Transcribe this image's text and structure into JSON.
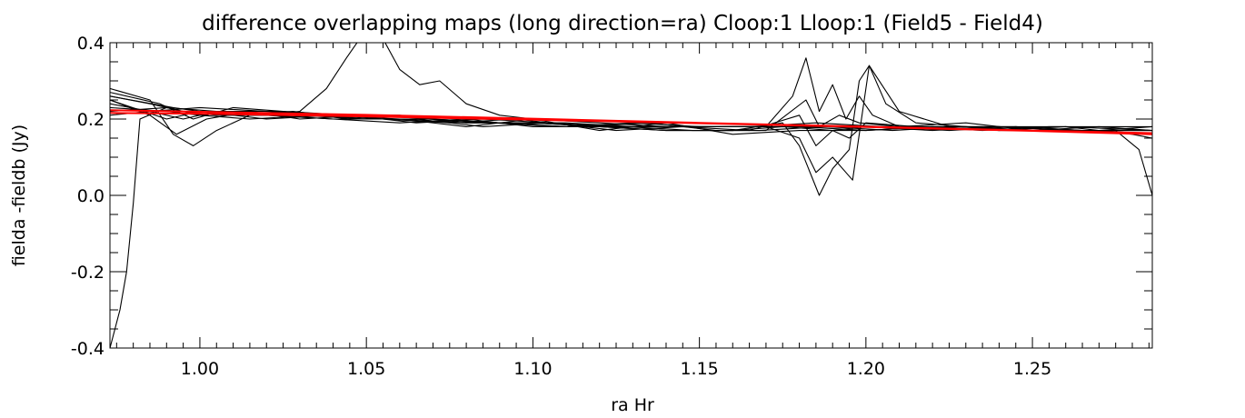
{
  "chart_data": {
    "type": "line",
    "title": "difference overlapping maps (long direction=ra)  Cloop:1 Lloop:1 (Field5 - Field4)",
    "xlabel": "ra Hr",
    "ylabel": "fielda -fieldb (Jy)",
    "xlim": [
      0.973,
      1.286
    ],
    "ylim": [
      -0.4,
      0.4
    ],
    "xticks": [
      1.0,
      1.05,
      1.1,
      1.15,
      1.2,
      1.25
    ],
    "xtick_labels": [
      "1.00",
      "1.05",
      "1.10",
      "1.15",
      "1.20",
      "1.25"
    ],
    "yticks": [
      -0.4,
      -0.2,
      0.0,
      0.2,
      0.4
    ],
    "ytick_labels": [
      "-0.4",
      "-0.2",
      "0.0",
      "0.2",
      "0.4"
    ],
    "grid": false,
    "series": [
      {
        "color": "#000000",
        "points": [
          [
            0.973,
            -0.4
          ],
          [
            0.976,
            -0.3
          ],
          [
            0.978,
            -0.2
          ],
          [
            0.98,
            -0.02
          ],
          [
            0.982,
            0.2
          ],
          [
            0.99,
            0.23
          ],
          [
            1.0,
            0.21
          ],
          [
            1.01,
            0.22
          ],
          [
            1.02,
            0.21
          ],
          [
            1.04,
            0.2
          ],
          [
            1.06,
            0.2
          ],
          [
            1.08,
            0.19
          ],
          [
            1.1,
            0.19
          ],
          [
            1.12,
            0.18
          ],
          [
            1.14,
            0.17
          ],
          [
            1.16,
            0.17
          ],
          [
            1.175,
            0.18
          ],
          [
            1.19,
            0.17
          ],
          [
            1.2,
            0.18
          ],
          [
            1.22,
            0.17
          ],
          [
            1.24,
            0.18
          ],
          [
            1.26,
            0.17
          ],
          [
            1.275,
            0.17
          ],
          [
            1.282,
            0.12
          ],
          [
            1.286,
            0.0
          ]
        ]
      },
      {
        "color": "#000000",
        "points": [
          [
            0.973,
            0.24
          ],
          [
            0.985,
            0.22
          ],
          [
            0.995,
            0.2
          ],
          [
            1.005,
            0.22
          ],
          [
            1.02,
            0.21
          ],
          [
            1.03,
            0.22
          ],
          [
            1.038,
            0.28
          ],
          [
            1.044,
            0.36
          ],
          [
            1.048,
            0.41
          ],
          [
            1.055,
            0.41
          ],
          [
            1.06,
            0.33
          ],
          [
            1.066,
            0.29
          ],
          [
            1.072,
            0.3
          ],
          [
            1.08,
            0.24
          ],
          [
            1.09,
            0.21
          ],
          [
            1.1,
            0.2
          ],
          [
            1.12,
            0.19
          ],
          [
            1.14,
            0.18
          ],
          [
            1.16,
            0.18
          ],
          [
            1.18,
            0.18
          ],
          [
            1.2,
            0.18
          ],
          [
            1.22,
            0.18
          ],
          [
            1.24,
            0.18
          ],
          [
            1.26,
            0.18
          ],
          [
            1.286,
            0.17
          ]
        ]
      },
      {
        "color": "#000000",
        "points": [
          [
            0.973,
            0.28
          ],
          [
            0.985,
            0.25
          ],
          [
            0.992,
            0.16
          ],
          [
            0.998,
            0.13
          ],
          [
            1.005,
            0.17
          ],
          [
            1.015,
            0.21
          ],
          [
            1.03,
            0.21
          ],
          [
            1.05,
            0.2
          ],
          [
            1.07,
            0.2
          ],
          [
            1.09,
            0.19
          ],
          [
            1.11,
            0.19
          ],
          [
            1.13,
            0.18
          ],
          [
            1.15,
            0.18
          ],
          [
            1.17,
            0.18
          ],
          [
            1.178,
            0.26
          ],
          [
            1.182,
            0.36
          ],
          [
            1.186,
            0.22
          ],
          [
            1.19,
            0.29
          ],
          [
            1.194,
            0.2
          ],
          [
            1.198,
            0.26
          ],
          [
            1.202,
            0.21
          ],
          [
            1.21,
            0.18
          ],
          [
            1.23,
            0.18
          ],
          [
            1.25,
            0.17
          ],
          [
            1.27,
            0.17
          ],
          [
            1.286,
            0.16
          ]
        ]
      },
      {
        "color": "#000000",
        "points": [
          [
            0.973,
            0.26
          ],
          [
            0.985,
            0.24
          ],
          [
            0.995,
            0.22
          ],
          [
            1.005,
            0.21
          ],
          [
            1.02,
            0.21
          ],
          [
            1.04,
            0.2
          ],
          [
            1.06,
            0.19
          ],
          [
            1.08,
            0.2
          ],
          [
            1.1,
            0.18
          ],
          [
            1.12,
            0.18
          ],
          [
            1.14,
            0.17
          ],
          [
            1.16,
            0.17
          ],
          [
            1.175,
            0.19
          ],
          [
            1.18,
            0.13
          ],
          [
            1.186,
            0.0
          ],
          [
            1.19,
            0.07
          ],
          [
            1.195,
            0.12
          ],
          [
            1.198,
            0.3
          ],
          [
            1.201,
            0.34
          ],
          [
            1.206,
            0.24
          ],
          [
            1.215,
            0.19
          ],
          [
            1.23,
            0.18
          ],
          [
            1.25,
            0.17
          ],
          [
            1.27,
            0.18
          ],
          [
            1.286,
            0.17
          ]
        ]
      },
      {
        "color": "#000000",
        "points": [
          [
            0.973,
            0.25
          ],
          [
            0.985,
            0.21
          ],
          [
            0.993,
            0.16
          ],
          [
            1.002,
            0.2
          ],
          [
            1.015,
            0.22
          ],
          [
            1.03,
            0.2
          ],
          [
            1.05,
            0.21
          ],
          [
            1.07,
            0.2
          ],
          [
            1.09,
            0.19
          ],
          [
            1.11,
            0.18
          ],
          [
            1.13,
            0.19
          ],
          [
            1.15,
            0.18
          ],
          [
            1.17,
            0.18
          ],
          [
            1.18,
            0.15
          ],
          [
            1.185,
            0.06
          ],
          [
            1.19,
            0.1
          ],
          [
            1.196,
            0.04
          ],
          [
            1.201,
            0.34
          ],
          [
            1.21,
            0.22
          ],
          [
            1.225,
            0.18
          ],
          [
            1.245,
            0.18
          ],
          [
            1.265,
            0.17
          ],
          [
            1.286,
            0.17
          ]
        ]
      },
      {
        "color": "#000000",
        "points": [
          [
            0.973,
            0.27
          ],
          [
            0.988,
            0.24
          ],
          [
            0.998,
            0.2
          ],
          [
            1.01,
            0.23
          ],
          [
            1.025,
            0.22
          ],
          [
            1.045,
            0.2
          ],
          [
            1.065,
            0.2
          ],
          [
            1.085,
            0.18
          ],
          [
            1.105,
            0.19
          ],
          [
            1.125,
            0.17
          ],
          [
            1.145,
            0.18
          ],
          [
            1.165,
            0.17
          ],
          [
            1.18,
            0.21
          ],
          [
            1.185,
            0.13
          ],
          [
            1.19,
            0.17
          ],
          [
            1.195,
            0.15
          ],
          [
            1.2,
            0.19
          ],
          [
            1.215,
            0.18
          ],
          [
            1.235,
            0.17
          ],
          [
            1.255,
            0.18
          ],
          [
            1.275,
            0.18
          ],
          [
            1.286,
            0.18
          ]
        ]
      },
      {
        "color": "#000000",
        "points": [
          [
            0.973,
            0.23
          ],
          [
            0.99,
            0.22
          ],
          [
            1.0,
            0.21
          ],
          [
            1.015,
            0.2
          ],
          [
            1.035,
            0.21
          ],
          [
            1.055,
            0.2
          ],
          [
            1.075,
            0.19
          ],
          [
            1.095,
            0.2
          ],
          [
            1.115,
            0.18
          ],
          [
            1.135,
            0.19
          ],
          [
            1.155,
            0.17
          ],
          [
            1.17,
            0.17
          ],
          [
            1.182,
            0.25
          ],
          [
            1.186,
            0.18
          ],
          [
            1.192,
            0.21
          ],
          [
            1.198,
            0.19
          ],
          [
            1.21,
            0.18
          ],
          [
            1.23,
            0.19
          ],
          [
            1.25,
            0.17
          ],
          [
            1.27,
            0.17
          ],
          [
            1.286,
            0.18
          ]
        ]
      },
      {
        "color": "#000000",
        "points": [
          [
            0.973,
            0.22
          ],
          [
            0.99,
            0.23
          ],
          [
            1.005,
            0.22
          ],
          [
            1.025,
            0.22
          ],
          [
            1.045,
            0.21
          ],
          [
            1.065,
            0.19
          ],
          [
            1.085,
            0.2
          ],
          [
            1.105,
            0.19
          ],
          [
            1.125,
            0.18
          ],
          [
            1.145,
            0.18
          ],
          [
            1.165,
            0.18
          ],
          [
            1.185,
            0.19
          ],
          [
            1.205,
            0.18
          ],
          [
            1.225,
            0.17
          ],
          [
            1.245,
            0.18
          ],
          [
            1.265,
            0.17
          ],
          [
            1.286,
            0.17
          ]
        ]
      },
      {
        "color": "#000000",
        "points": [
          [
            0.973,
            0.25
          ],
          [
            0.99,
            0.2
          ],
          [
            1.0,
            0.22
          ],
          [
            1.02,
            0.2
          ],
          [
            1.04,
            0.21
          ],
          [
            1.06,
            0.2
          ],
          [
            1.08,
            0.18
          ],
          [
            1.1,
            0.2
          ],
          [
            1.12,
            0.17
          ],
          [
            1.14,
            0.19
          ],
          [
            1.16,
            0.16
          ],
          [
            1.18,
            0.17
          ],
          [
            1.2,
            0.17
          ],
          [
            1.22,
            0.18
          ],
          [
            1.24,
            0.17
          ],
          [
            1.26,
            0.18
          ],
          [
            1.28,
            0.16
          ],
          [
            1.286,
            0.15
          ]
        ]
      },
      {
        "color": "#000000",
        "points": [
          [
            0.973,
            0.21
          ],
          [
            0.985,
            0.22
          ],
          [
            1.0,
            0.23
          ],
          [
            1.02,
            0.22
          ],
          [
            1.04,
            0.21
          ],
          [
            1.06,
            0.21
          ],
          [
            1.08,
            0.19
          ],
          [
            1.1,
            0.19
          ],
          [
            1.12,
            0.18
          ],
          [
            1.14,
            0.18
          ],
          [
            1.16,
            0.18
          ],
          [
            1.18,
            0.18
          ],
          [
            1.2,
            0.17
          ],
          [
            1.22,
            0.18
          ],
          [
            1.24,
            0.17
          ],
          [
            1.26,
            0.17
          ],
          [
            1.286,
            0.16
          ]
        ]
      },
      {
        "color": "#000000",
        "points": [
          [
            0.973,
            0.26
          ],
          [
            0.992,
            0.23
          ],
          [
            1.008,
            0.21
          ],
          [
            1.028,
            0.22
          ],
          [
            1.048,
            0.2
          ],
          [
            1.068,
            0.2
          ],
          [
            1.088,
            0.19
          ],
          [
            1.108,
            0.18
          ],
          [
            1.128,
            0.18
          ],
          [
            1.148,
            0.17
          ],
          [
            1.168,
            0.17
          ],
          [
            1.188,
            0.18
          ],
          [
            1.208,
            0.17
          ],
          [
            1.228,
            0.18
          ],
          [
            1.248,
            0.17
          ],
          [
            1.268,
            0.17
          ],
          [
            1.286,
            0.16
          ]
        ]
      },
      {
        "color": "#ff0000",
        "points": [
          [
            0.973,
            0.223
          ],
          [
            1.0,
            0.219
          ],
          [
            1.05,
            0.211
          ],
          [
            1.1,
            0.201
          ],
          [
            1.15,
            0.19
          ],
          [
            1.2,
            0.18
          ],
          [
            1.25,
            0.17
          ],
          [
            1.286,
            0.163
          ]
        ]
      },
      {
        "color": "#ff0000",
        "points": [
          [
            0.973,
            0.216
          ],
          [
            1.0,
            0.214
          ],
          [
            1.05,
            0.207
          ],
          [
            1.1,
            0.198
          ],
          [
            1.15,
            0.189
          ],
          [
            1.2,
            0.179
          ],
          [
            1.25,
            0.169
          ],
          [
            1.286,
            0.16
          ]
        ]
      }
    ]
  }
}
